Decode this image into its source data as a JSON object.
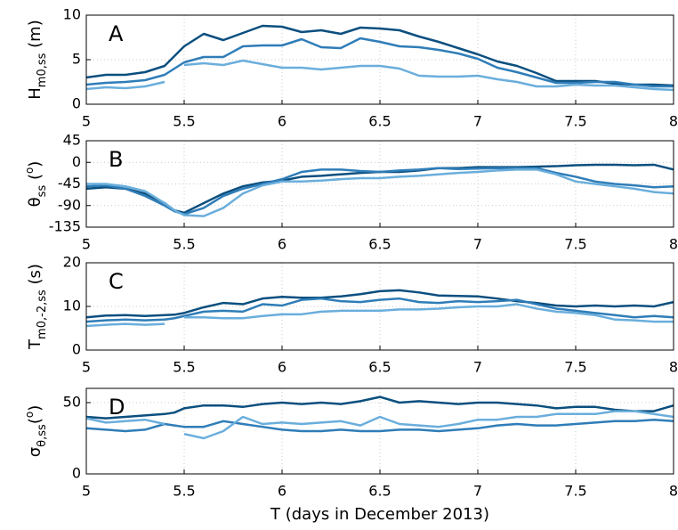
{
  "chart_data": [
    {
      "type": "line",
      "label": "A",
      "ylabel": [
        {
          "text": "H"
        },
        {
          "text": "m0,ss",
          "sub": true
        },
        {
          "text": " (m)"
        }
      ],
      "x": [
        5,
        5.1,
        5.2,
        5.3,
        5.4,
        5.45,
        5.5,
        5.6,
        5.7,
        5.8,
        5.9,
        6,
        6.1,
        6.2,
        6.3,
        6.4,
        6.5,
        6.6,
        6.7,
        6.8,
        6.9,
        7,
        7.1,
        7.2,
        7.3,
        7.4,
        7.5,
        7.6,
        7.7,
        7.8,
        7.9,
        8
      ],
      "series": [
        {
          "color": "#0b4f7f",
          "values": [
            3.0,
            3.3,
            3.3,
            3.6,
            4.3,
            5.4,
            6.5,
            7.9,
            7.2,
            8.0,
            8.8,
            8.7,
            8.1,
            8.3,
            7.9,
            8.6,
            8.5,
            8.3,
            7.6,
            7.0,
            6.3,
            5.6,
            4.8,
            4.3,
            3.5,
            2.6,
            2.6,
            2.6,
            2.3,
            2.2,
            2.2,
            2.1
          ]
        },
        {
          "color": "#2f7db8",
          "values": [
            2.2,
            2.4,
            2.5,
            2.7,
            3.3,
            4.0,
            4.7,
            5.3,
            5.3,
            6.5,
            6.6,
            6.6,
            7.3,
            6.4,
            6.3,
            7.4,
            7.0,
            6.5,
            6.4,
            6.1,
            5.7,
            5.1,
            4.1,
            3.6,
            3.0,
            2.4,
            2.4,
            2.5,
            2.5,
            2.2,
            2.0,
            2.0
          ]
        },
        {
          "color": "#6aaedc",
          "values": [
            1.7,
            1.9,
            1.8,
            2.0,
            2.5,
            null,
            4.4,
            4.6,
            4.4,
            4.9,
            4.5,
            4.1,
            4.1,
            3.9,
            4.1,
            4.3,
            4.3,
            4.0,
            3.2,
            3.1,
            3.1,
            3.2,
            2.8,
            2.5,
            2.0,
            2.0,
            2.2,
            2.1,
            2.1,
            1.9,
            1.7,
            1.6
          ]
        }
      ],
      "xlim": [
        5,
        8
      ],
      "xticks": [
        5,
        5.5,
        6,
        6.5,
        7,
        7.5,
        8
      ],
      "ylim": [
        0,
        10
      ],
      "yticks": [
        0,
        5,
        10
      ],
      "grid": true
    },
    {
      "type": "line",
      "label": "B",
      "ylabel": [
        {
          "text": "θ"
        },
        {
          "text": "ss",
          "sub": true
        },
        {
          "text": " ("
        },
        {
          "text": "o",
          "sup": true
        },
        {
          "text": ")"
        }
      ],
      "x": [
        5,
        5.1,
        5.2,
        5.3,
        5.4,
        5.45,
        5.5,
        5.6,
        5.7,
        5.8,
        5.9,
        6,
        6.1,
        6.2,
        6.3,
        6.4,
        6.5,
        6.6,
        6.7,
        6.8,
        6.9,
        7,
        7.1,
        7.2,
        7.3,
        7.4,
        7.5,
        7.6,
        7.7,
        7.8,
        7.9,
        8
      ],
      "series": [
        {
          "color": "#0b4f7f",
          "values": [
            -55,
            -52,
            -55,
            -65,
            -85,
            -100,
            -105,
            -85,
            -65,
            -50,
            -42,
            -38,
            -30,
            -28,
            -25,
            -22,
            -20,
            -20,
            -17,
            -12,
            -12,
            -10,
            -10,
            -10,
            -9,
            -8,
            -6,
            -5,
            -5,
            -6,
            -5,
            -15
          ]
        },
        {
          "color": "#2f7db8",
          "values": [
            -50,
            -48,
            -55,
            -70,
            -90,
            -102,
            -108,
            -95,
            -70,
            -55,
            -45,
            -35,
            -20,
            -15,
            -15,
            -18,
            -20,
            -17,
            -15,
            -12,
            -14,
            -13,
            -12,
            -12,
            -12,
            -22,
            -30,
            -40,
            -45,
            -48,
            -52,
            -50
          ]
        },
        {
          "color": "#6aaedc",
          "values": [
            -45,
            -45,
            -50,
            -60,
            -85,
            -100,
            -110,
            -112,
            -95,
            -65,
            -48,
            -40,
            -40,
            -38,
            -35,
            -33,
            -33,
            -30,
            -28,
            -25,
            -22,
            -20,
            -17,
            -15,
            -15,
            -25,
            -40,
            -45,
            -50,
            -55,
            -62,
            -65
          ]
        }
      ],
      "xlim": [
        5,
        8
      ],
      "xticks": [
        5,
        5.5,
        6,
        6.5,
        7,
        7.5,
        8
      ],
      "ylim": [
        -135,
        45
      ],
      "yticks": [
        -135,
        -90,
        -45,
        0,
        45
      ],
      "grid": true
    },
    {
      "type": "line",
      "label": "C",
      "ylabel": [
        {
          "text": "T"
        },
        {
          "text": "m0,-2,ss",
          "sub": true
        },
        {
          "text": " (s)"
        }
      ],
      "x": [
        5,
        5.1,
        5.2,
        5.3,
        5.4,
        5.45,
        5.5,
        5.6,
        5.7,
        5.8,
        5.9,
        6,
        6.1,
        6.2,
        6.3,
        6.4,
        6.5,
        6.6,
        6.7,
        6.8,
        6.9,
        7,
        7.1,
        7.2,
        7.3,
        7.4,
        7.5,
        7.6,
        7.7,
        7.8,
        7.9,
        8
      ],
      "series": [
        {
          "color": "#0b4f7f",
          "values": [
            7.5,
            7.9,
            8.0,
            7.8,
            8.0,
            8.1,
            8.5,
            9.8,
            10.8,
            10.5,
            11.8,
            12.2,
            12.0,
            12.0,
            12.3,
            12.8,
            13.5,
            13.7,
            13.2,
            12.5,
            12.4,
            12.3,
            11.8,
            11.2,
            10.8,
            10.2,
            10.0,
            10.2,
            10.0,
            10.2,
            10.0,
            11.0
          ]
        },
        {
          "color": "#2f7db8",
          "values": [
            6.5,
            6.8,
            7.0,
            6.8,
            7.0,
            7.3,
            7.8,
            8.8,
            9.0,
            8.8,
            10.5,
            10.2,
            11.5,
            11.8,
            11.2,
            11.0,
            11.5,
            11.8,
            11.0,
            10.8,
            11.2,
            11.0,
            11.2,
            11.5,
            10.5,
            9.5,
            9.0,
            8.5,
            8.0,
            7.5,
            7.8,
            7.5
          ]
        },
        {
          "color": "#6aaedc",
          "values": [
            5.5,
            5.8,
            6.0,
            5.8,
            6.0,
            null,
            7.5,
            7.5,
            7.3,
            7.3,
            7.8,
            8.2,
            8.2,
            8.8,
            9.0,
            9.0,
            9.0,
            9.3,
            9.3,
            9.5,
            9.8,
            10.0,
            10.0,
            10.5,
            9.5,
            8.8,
            8.5,
            8.0,
            7.0,
            6.8,
            6.5,
            6.5
          ]
        }
      ],
      "xlim": [
        5,
        8
      ],
      "xticks": [
        5,
        5.5,
        6,
        6.5,
        7,
        7.5,
        8
      ],
      "ylim": [
        0,
        20
      ],
      "yticks": [
        0,
        10,
        20
      ],
      "grid": true
    },
    {
      "type": "line",
      "label": "D",
      "ylabel": [
        {
          "text": "σ"
        },
        {
          "text": "θ,ss",
          "sub": true
        },
        {
          "text": "("
        },
        {
          "text": "o",
          "sup": true
        },
        {
          "text": ")"
        }
      ],
      "xlabel": "T (days in December 2013)",
      "x": [
        5,
        5.1,
        5.2,
        5.3,
        5.4,
        5.45,
        5.5,
        5.6,
        5.7,
        5.8,
        5.9,
        6,
        6.1,
        6.2,
        6.3,
        6.4,
        6.5,
        6.6,
        6.7,
        6.8,
        6.9,
        7,
        7.1,
        7.2,
        7.3,
        7.4,
        7.5,
        7.6,
        7.7,
        7.8,
        7.9,
        8
      ],
      "series": [
        {
          "color": "#0b4f7f",
          "values": [
            40,
            39,
            40,
            41,
            42,
            43,
            46,
            48,
            48,
            47,
            49,
            50,
            49,
            50,
            49,
            51,
            54,
            50,
            51,
            50,
            49,
            50,
            50,
            49,
            48,
            46,
            47,
            47,
            45,
            44,
            44,
            48
          ]
        },
        {
          "color": "#2f7db8",
          "values": [
            32,
            31,
            30,
            31,
            35,
            34,
            33,
            33,
            37,
            35,
            33,
            31,
            30,
            30,
            31,
            30,
            30,
            31,
            31,
            30,
            31,
            32,
            34,
            35,
            34,
            34,
            35,
            36,
            37,
            37,
            38,
            37
          ]
        },
        {
          "color": "#6aaedc",
          "values": [
            39,
            36,
            37,
            38,
            35,
            null,
            28,
            25,
            30,
            40,
            35,
            36,
            35,
            36,
            37,
            34,
            40,
            35,
            34,
            33,
            35,
            38,
            38,
            40,
            40,
            42,
            42,
            42,
            44,
            44,
            42,
            40
          ]
        }
      ],
      "xlim": [
        5,
        8
      ],
      "xticks": [
        5,
        5.5,
        6,
        6.5,
        7,
        7.5,
        8
      ],
      "ylim": [
        0,
        60
      ],
      "yticks": [
        0,
        50
      ],
      "grid": true
    }
  ]
}
